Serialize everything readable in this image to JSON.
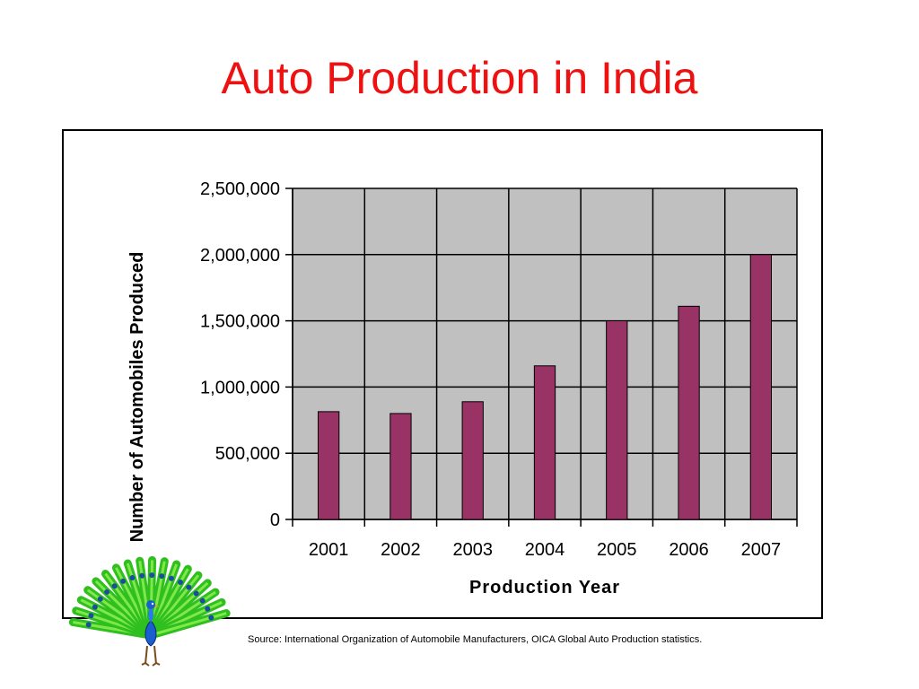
{
  "title": "Auto Production in India",
  "source": "Source: International Organization of Automobile Manufacturers, OICA Global Auto Production statistics.",
  "colors": {
    "title": "#ee1111",
    "bar": "#993366",
    "plot_background": "#c0c0c0",
    "gridline": "#000000"
  },
  "icons": [
    "peacock-clipart"
  ],
  "chart_data": {
    "type": "bar",
    "categories": [
      "2001",
      "2002",
      "2003",
      "2004",
      "2005",
      "2006",
      "2007"
    ],
    "values": [
      814000,
      800000,
      889000,
      1160000,
      1500000,
      1610000,
      2000000
    ],
    "xlabel": "Production Year",
    "ylabel": "Number of Automobiles Produced",
    "ylim": [
      0,
      2500000
    ],
    "yticks": [
      0,
      500000,
      1000000,
      1500000,
      2000000,
      2500000
    ],
    "ytick_labels": [
      "0",
      "500,000",
      "1,000,000",
      "1,500,000",
      "2,000,000",
      "2,500,000"
    ],
    "grid": true,
    "legend": "none"
  }
}
